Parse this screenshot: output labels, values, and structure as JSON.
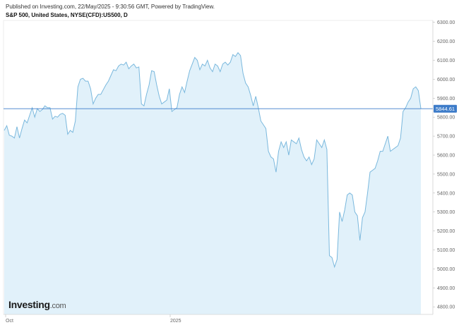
{
  "header": {
    "published": "Published on Investing.com, 22/May/2025 - 9:30:56 GMT, Powered by TradingView.",
    "title": "S&P 500, United States, NYSE(CFD):US500, D"
  },
  "logo": {
    "main": "Investing",
    "suffix": ".com"
  },
  "colors": {
    "line": "#7ab8dd",
    "fill": "#e1f1fa",
    "badge": "#3d7cc9",
    "axis": "#cccccc"
  },
  "chart_data": {
    "type": "area",
    "x_tick_labels": [
      "Oct",
      "2025"
    ],
    "y_ticks": [
      4800,
      4900,
      5000,
      5100,
      5200,
      5300,
      5400,
      5500,
      5600,
      5700,
      5800,
      5900,
      6000,
      6100,
      6200,
      6300
    ],
    "y_tick_labels": [
      "4800.00",
      "4900.00",
      "5000.00",
      "5100.00",
      "5200.00",
      "5300.00",
      "5400.00",
      "5500.00",
      "5600.00",
      "5700.00",
      "5800.00",
      "5900.00",
      "6000.00",
      "6100.00",
      "6200.00",
      "6300.00"
    ],
    "ylim": [
      4760,
      6310
    ],
    "last_value": 5844.61,
    "last_value_label": "5844.61",
    "values": [
      5730,
      5755,
      5705,
      5700,
      5690,
      5750,
      5690,
      5740,
      5785,
      5770,
      5810,
      5850,
      5800,
      5845,
      5830,
      5840,
      5860,
      5850,
      5850,
      5790,
      5805,
      5800,
      5815,
      5820,
      5810,
      5710,
      5730,
      5720,
      5780,
      5960,
      6000,
      6005,
      5990,
      5990,
      5950,
      5870,
      5900,
      5920,
      5920,
      5945,
      5970,
      5990,
      6020,
      6050,
      6045,
      6070,
      6080,
      6075,
      6090,
      6055,
      6070,
      6080,
      6060,
      6065,
      5870,
      5860,
      5920,
      5970,
      6045,
      6040,
      5970,
      5910,
      5870,
      5880,
      5890,
      5950,
      5830,
      5840,
      5850,
      5920,
      5960,
      5930,
      5990,
      6045,
      6080,
      6115,
      6100,
      6050,
      6080,
      6070,
      6100,
      6060,
      6040,
      6080,
      6070,
      6040,
      6080,
      6090,
      6075,
      6090,
      6130,
      6120,
      6140,
      6125,
      6030,
      5980,
      5960,
      5915,
      5860,
      5910,
      5850,
      5780,
      5760,
      5740,
      5620,
      5590,
      5580,
      5510,
      5620,
      5670,
      5640,
      5670,
      5600,
      5680,
      5670,
      5660,
      5690,
      5630,
      5590,
      5570,
      5590,
      5550,
      5580,
      5680,
      5660,
      5640,
      5680,
      5630,
      5070,
      5060,
      5010,
      5050,
      5300,
      5250,
      5310,
      5390,
      5400,
      5390,
      5300,
      5280,
      5150,
      5270,
      5300,
      5400,
      5510,
      5520,
      5530,
      5570,
      5620,
      5620,
      5660,
      5700,
      5620,
      5630,
      5640,
      5650,
      5690,
      5830,
      5850,
      5880,
      5900,
      5950,
      5960,
      5940,
      5845
    ]
  }
}
